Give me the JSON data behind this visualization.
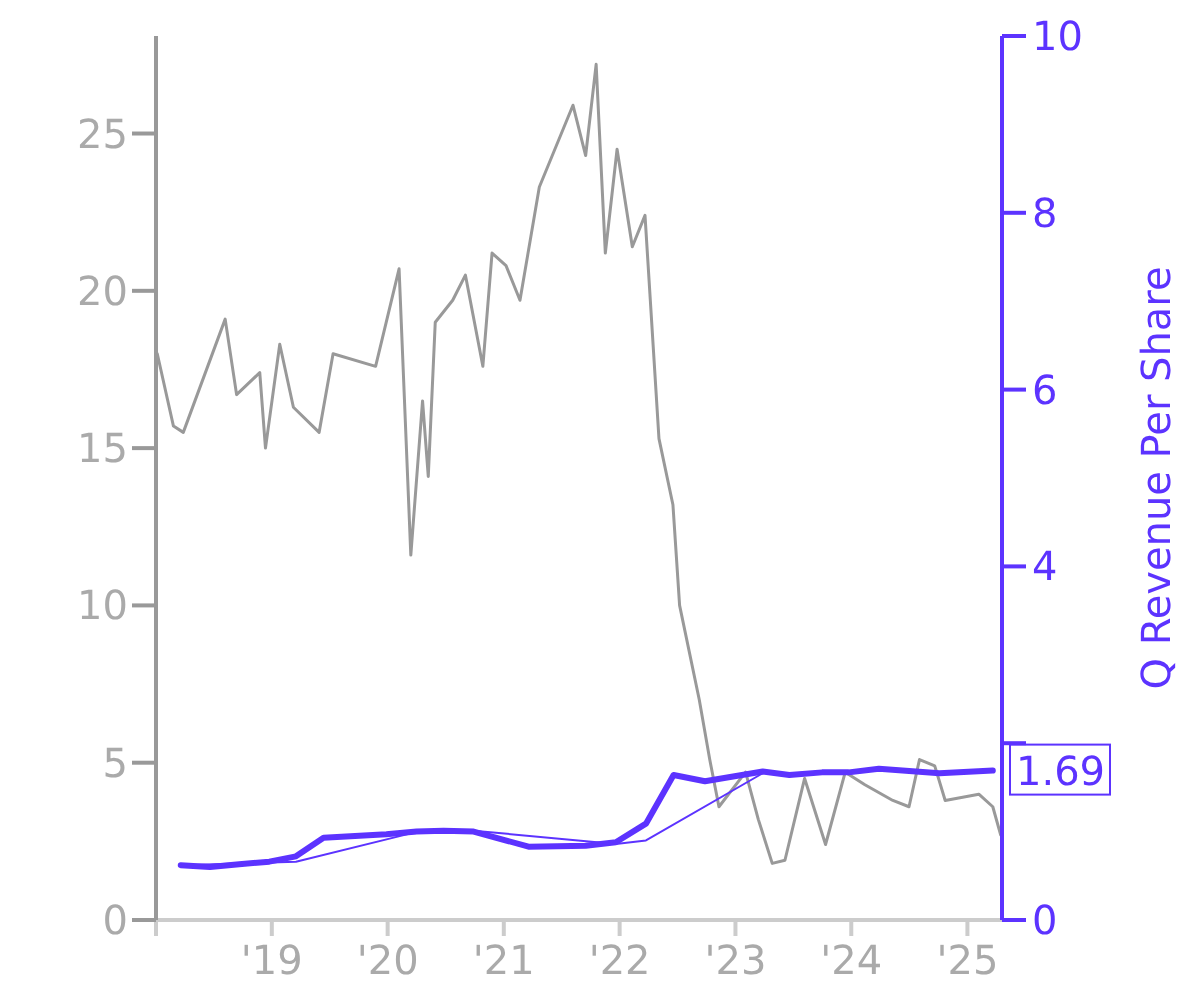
{
  "chart_data": {
    "type": "line",
    "y2label": "Q Revenue Per Share",
    "xlim": [
      "2018-01-01",
      "2025-04-20"
    ],
    "xticks": [
      {
        "value": "2018",
        "label": null
      },
      {
        "value": "2019",
        "label": "'19"
      },
      {
        "value": "2020",
        "label": "'20"
      },
      {
        "value": "2021",
        "label": "'21"
      },
      {
        "value": "2022",
        "label": "'22"
      },
      {
        "value": "2023",
        "label": "'23"
      },
      {
        "value": "2024",
        "label": "'24"
      },
      {
        "value": "2025",
        "label": "'25"
      }
    ],
    "ylim": [
      0,
      28.1
    ],
    "yticks": [
      0,
      5,
      10,
      15,
      20,
      25
    ],
    "y2lim": [
      0,
      10
    ],
    "y2ticks": [
      0,
      {
        "value": 2,
        "label": null
      },
      4,
      6,
      8,
      10
    ],
    "grid": false,
    "series": [
      {
        "color": "#999999",
        "x": [
          "2018-01-05",
          "2018-02-25",
          "2018-03-28",
          "2018-08-07",
          "2018-09-12",
          "2018-11-24",
          "2018-12-12",
          "2019-01-26",
          "2019-03-10",
          "2019-05-30",
          "2019-07-13",
          "2019-11-24",
          "2020-02-06",
          "2020-03-14",
          "2020-04-20",
          "2020-05-08",
          "2020-05-30",
          "2020-07-24",
          "2020-09-02",
          "2020-10-27",
          "2020-11-25",
          "2021-01-08",
          "2021-02-21",
          "2021-04-23",
          "2021-08-07",
          "2021-09-16",
          "2021-10-19",
          "2021-11-17",
          "2021-12-24",
          "2022-02-10",
          "2022-03-22",
          "2022-05-05",
          "2022-06-18",
          "2022-07-09",
          "2022-09-09",
          "2022-10-12",
          "2022-11-10",
          "2023-02-02",
          "2023-03-14",
          "2023-04-27",
          "2023-06-06",
          "2023-08-07",
          "2023-10-12",
          "2023-12-13",
          "2024-02-13",
          "2024-05-11",
          "2024-07-01",
          "2024-08-03",
          "2024-09-20",
          "2024-10-23",
          "2025-02-06",
          "2025-03-22",
          "2025-04-16"
        ],
        "values": [
          18.0,
          15.7,
          15.5,
          19.1,
          16.7,
          17.4,
          15.0,
          18.3,
          16.3,
          15.5,
          18.0,
          17.6,
          20.7,
          11.6,
          16.5,
          14.1,
          19.0,
          19.7,
          20.5,
          17.6,
          21.2,
          20.8,
          19.7,
          23.3,
          25.9,
          24.3,
          27.2,
          21.2,
          24.5,
          21.4,
          22.4,
          15.3,
          13.2,
          10.0,
          7.0,
          5.1,
          3.6,
          4.7,
          3.2,
          1.8,
          1.9,
          4.5,
          2.4,
          4.7,
          4.3,
          3.8,
          3.6,
          5.1,
          4.9,
          3.8,
          4.0,
          3.6,
          2.7
        ]
      },
      {
        "color": "#5c33ff",
        "axis": "y2",
        "x": [
          "2018-03-20",
          "2018-06-20",
          "2018-09-20",
          "2018-12-24",
          "2019-03-18",
          "2019-06-13",
          "2019-12-28",
          "2020-04-01",
          "2020-06-25",
          "2020-09-28",
          "2021-03-20",
          "2021-09-16",
          "2021-12-20",
          "2022-03-25",
          "2022-06-20",
          "2022-09-27",
          "2023-03-28",
          "2023-06-20",
          "2023-10-01",
          "2023-12-24",
          "2024-03-28",
          "2024-10-05",
          "2025-03-22"
        ],
        "values": [
          0.62,
          0.6,
          0.63,
          0.66,
          0.72,
          0.93,
          0.97,
          1.0,
          1.01,
          1.0,
          0.83,
          0.84,
          0.88,
          1.09,
          1.64,
          1.57,
          1.68,
          1.64,
          1.67,
          1.67,
          1.71,
          1.66,
          1.69
        ],
        "value_labels": [
          null,
          null,
          null,
          null,
          null,
          null,
          null,
          null,
          null,
          null,
          null,
          null,
          null,
          null,
          null,
          null,
          null,
          null,
          null,
          null,
          null,
          null,
          "1.69"
        ]
      },
      {
        "color": "#5c33ff",
        "axis": "y2",
        "x": [
          "2018-03-20",
          "2019-03-18",
          "2020-03-14",
          "2020-09-28",
          "2021-12-20",
          "2022-03-25",
          "2023-03-28"
        ],
        "values": [
          0.62,
          0.66,
          0.98,
          1.01,
          0.86,
          0.9,
          1.66
        ]
      }
    ]
  }
}
